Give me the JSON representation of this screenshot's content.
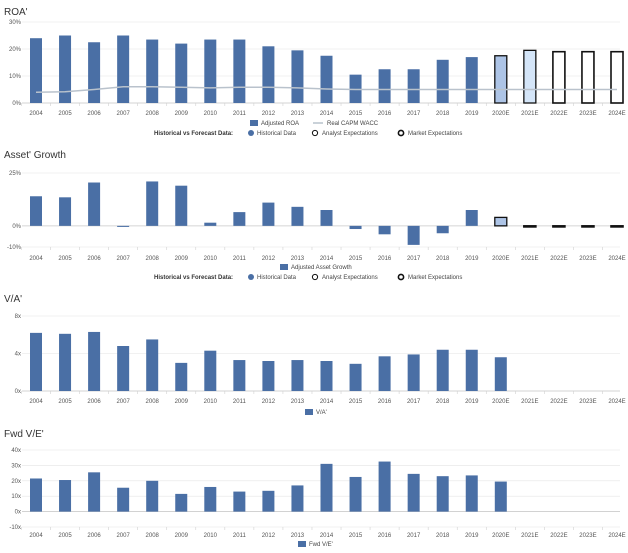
{
  "years": [
    "2004",
    "2005",
    "2006",
    "2007",
    "2008",
    "2009",
    "2010",
    "2011",
    "2012",
    "2013",
    "2014",
    "2015",
    "2016",
    "2017",
    "2018",
    "2019",
    "2020E",
    "2021E",
    "2022E",
    "2023E",
    "2024E"
  ],
  "forecast_legend": {
    "title": "Historical vs Forecast Data:",
    "historical": "Historical Data",
    "analyst": "Analyst Expectations",
    "market": "Market Expectations"
  },
  "chart_data": [
    {
      "id": "roa",
      "type": "bar",
      "title": "ROA'",
      "ylim": [
        0,
        30
      ],
      "yticks": [
        "0%",
        "10%",
        "20%",
        "30%"
      ],
      "series": [
        {
          "name": "Adjusted ROA",
          "values": [
            24,
            25,
            22.5,
            25,
            23.5,
            22,
            23.5,
            23.5,
            21,
            19.5,
            17.5,
            10.5,
            12.5,
            12.5,
            16,
            17,
            17.5,
            19.5,
            19,
            19,
            19
          ]
        },
        {
          "name": "Real CAPM WACC",
          "type": "line",
          "values": [
            4,
            4.2,
            5,
            6,
            6,
            5.8,
            5.6,
            5.8,
            5.8,
            5.6,
            5.2,
            5,
            5,
            5,
            5,
            5,
            5,
            5,
            5,
            5,
            5
          ]
        }
      ],
      "bar_styles": [
        "h",
        "h",
        "h",
        "h",
        "h",
        "h",
        "h",
        "h",
        "h",
        "h",
        "h",
        "h",
        "h",
        "h",
        "h",
        "h",
        "a",
        "b",
        "m",
        "m",
        "m"
      ]
    },
    {
      "id": "growth",
      "type": "bar",
      "title": "Asset' Growth",
      "ylim": [
        -10,
        25
      ],
      "yticks": [
        "-10%",
        "0%",
        "25%"
      ],
      "series": [
        {
          "name": "Adjusted Asset Growth",
          "values": [
            14,
            13.5,
            20.5,
            -0.5,
            21,
            19,
            1.5,
            6.5,
            11,
            9,
            7.5,
            -1.5,
            -4,
            -9,
            -3.5,
            7.5,
            4,
            -0.5,
            -0.5,
            -0.5,
            -0.5
          ]
        }
      ],
      "bar_styles": [
        "h",
        "h",
        "h",
        "h",
        "h",
        "h",
        "h",
        "h",
        "h",
        "h",
        "h",
        "h",
        "h",
        "h",
        "h",
        "h",
        "a",
        "m",
        "m",
        "m",
        "m"
      ]
    },
    {
      "id": "va",
      "type": "bar",
      "title": "V/A'",
      "ylim": [
        0,
        8
      ],
      "yticks": [
        "0x",
        "4x",
        "8x"
      ],
      "series": [
        {
          "name": "V/A'",
          "values": [
            6.2,
            6.1,
            6.3,
            4.8,
            5.5,
            3.0,
            4.3,
            3.3,
            3.2,
            3.3,
            3.2,
            2.9,
            3.7,
            3.9,
            4.4,
            4.4,
            3.6
          ]
        }
      ]
    },
    {
      "id": "fwdve",
      "type": "bar",
      "title": "Fwd V/E'",
      "ylim": [
        -10,
        40
      ],
      "yticks": [
        "-10x",
        "0x",
        "10x",
        "20x",
        "30x",
        "40x"
      ],
      "series": [
        {
          "name": "Fwd V/E'",
          "values": [
            21.5,
            20.5,
            25.5,
            15.5,
            20,
            11.5,
            16,
            13,
            13.5,
            17,
            31,
            22.5,
            32.5,
            24.5,
            23,
            23.5,
            19.5
          ]
        }
      ]
    }
  ],
  "colors": {
    "historical": "#4a6fa5",
    "analyst_fill": "#adc4e6",
    "forecast_fill": "#d4e5f8",
    "market_fill": "#ffffff",
    "outline": "#111111",
    "wacc_line": "#b9c2cc",
    "grid": "#e4e4e4"
  }
}
